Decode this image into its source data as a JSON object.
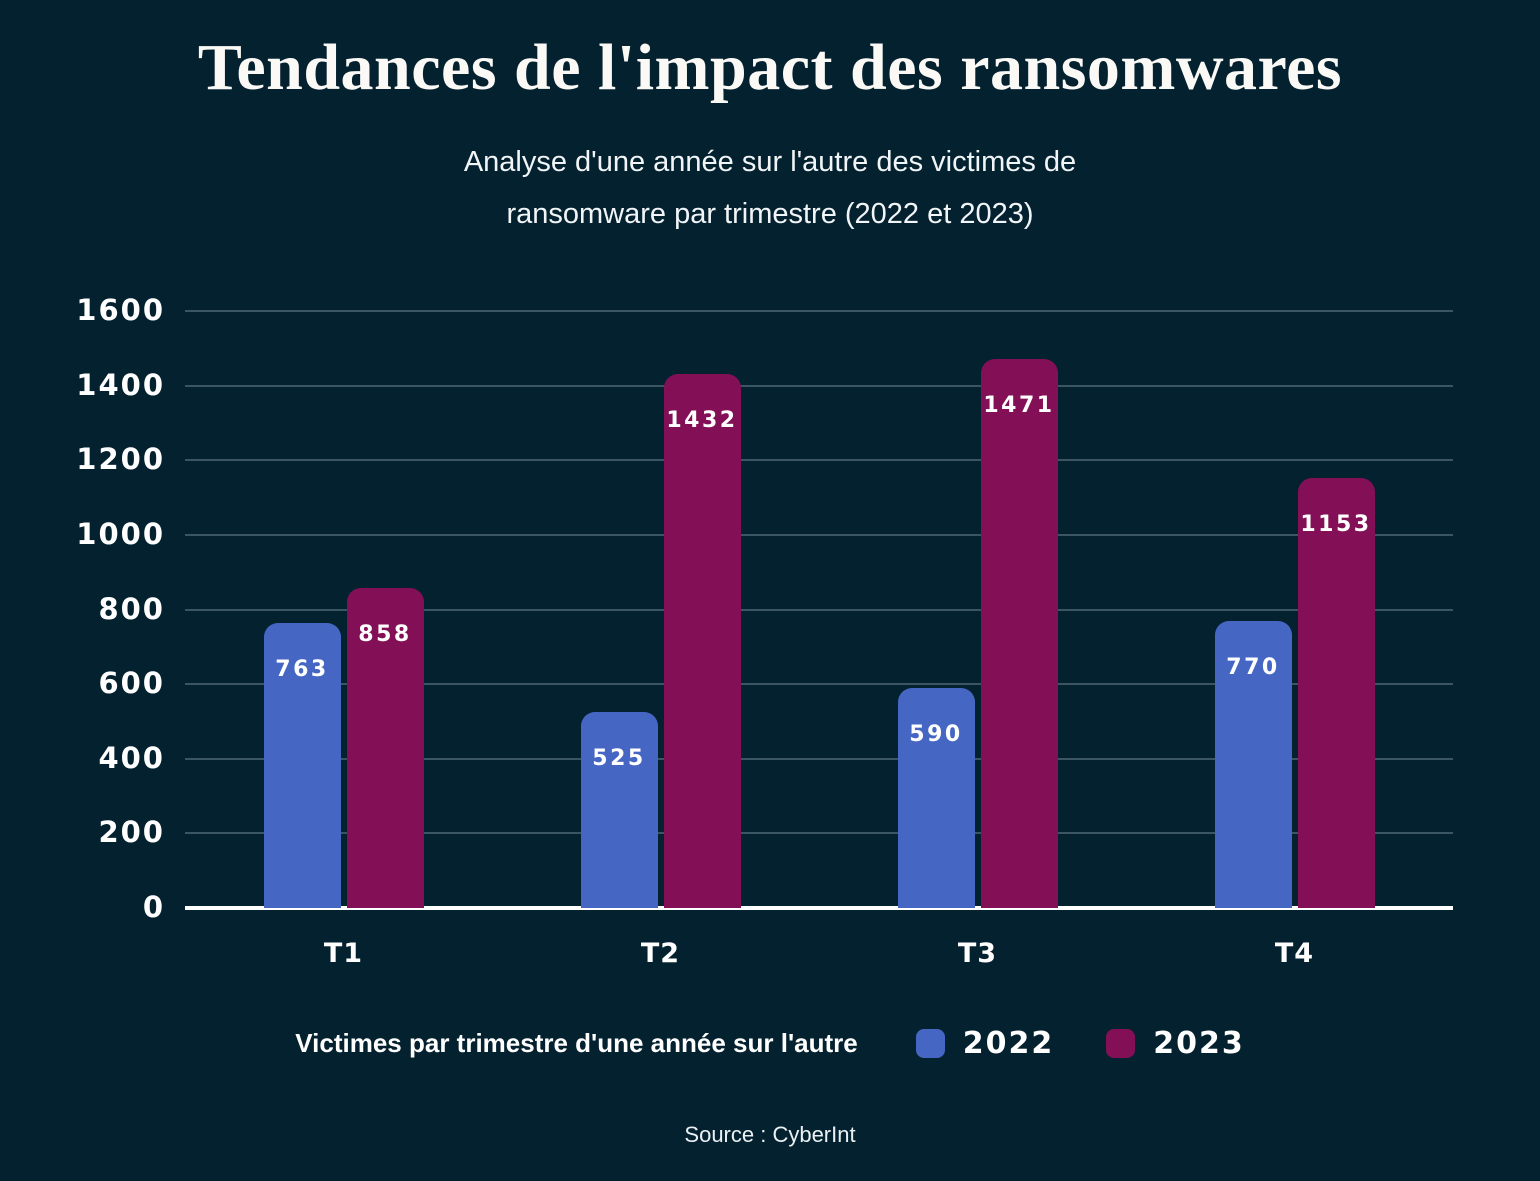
{
  "title": "Tendances de l'impact des ransomwares",
  "subtitle": {
    "line1": "Analyse d'une année sur l'autre des victimes de",
    "line2": "ransomware par trimestre (2022 et 2023)"
  },
  "legend": {
    "label": "Victimes par trimestre d'une année sur l'autre",
    "items": [
      {
        "name": "2022",
        "color": "#4567c3"
      },
      {
        "name": "2023",
        "color": "#831056"
      }
    ],
    "position": "bottom"
  },
  "source": "Source : CyberInt",
  "colors": {
    "background": "#04212f",
    "series_2022": "#4567c3",
    "series_2023": "#831056",
    "gridline": "rgba(190,210,220,0.30)",
    "axis": "#ffffff",
    "text": "#ffffff"
  },
  "chart_data": {
    "type": "bar",
    "categories": [
      "T1",
      "T2",
      "T3",
      "T4"
    ],
    "series": [
      {
        "name": "2022",
        "color": "#4567c3",
        "values": [
          763,
          525,
          590,
          770
        ]
      },
      {
        "name": "2023",
        "color": "#831056",
        "values": [
          858,
          1432,
          1471,
          1153
        ]
      }
    ],
    "title": "Tendances de l'impact des ransomwares",
    "subtitle": "Analyse d'une année sur l'autre des victimes de ransomware par trimestre (2022 et 2023)",
    "xlabel": "",
    "ylabel": "",
    "ylim": [
      0,
      1600
    ],
    "ytick_step": 200,
    "grid": true,
    "legend_position": "bottom"
  }
}
